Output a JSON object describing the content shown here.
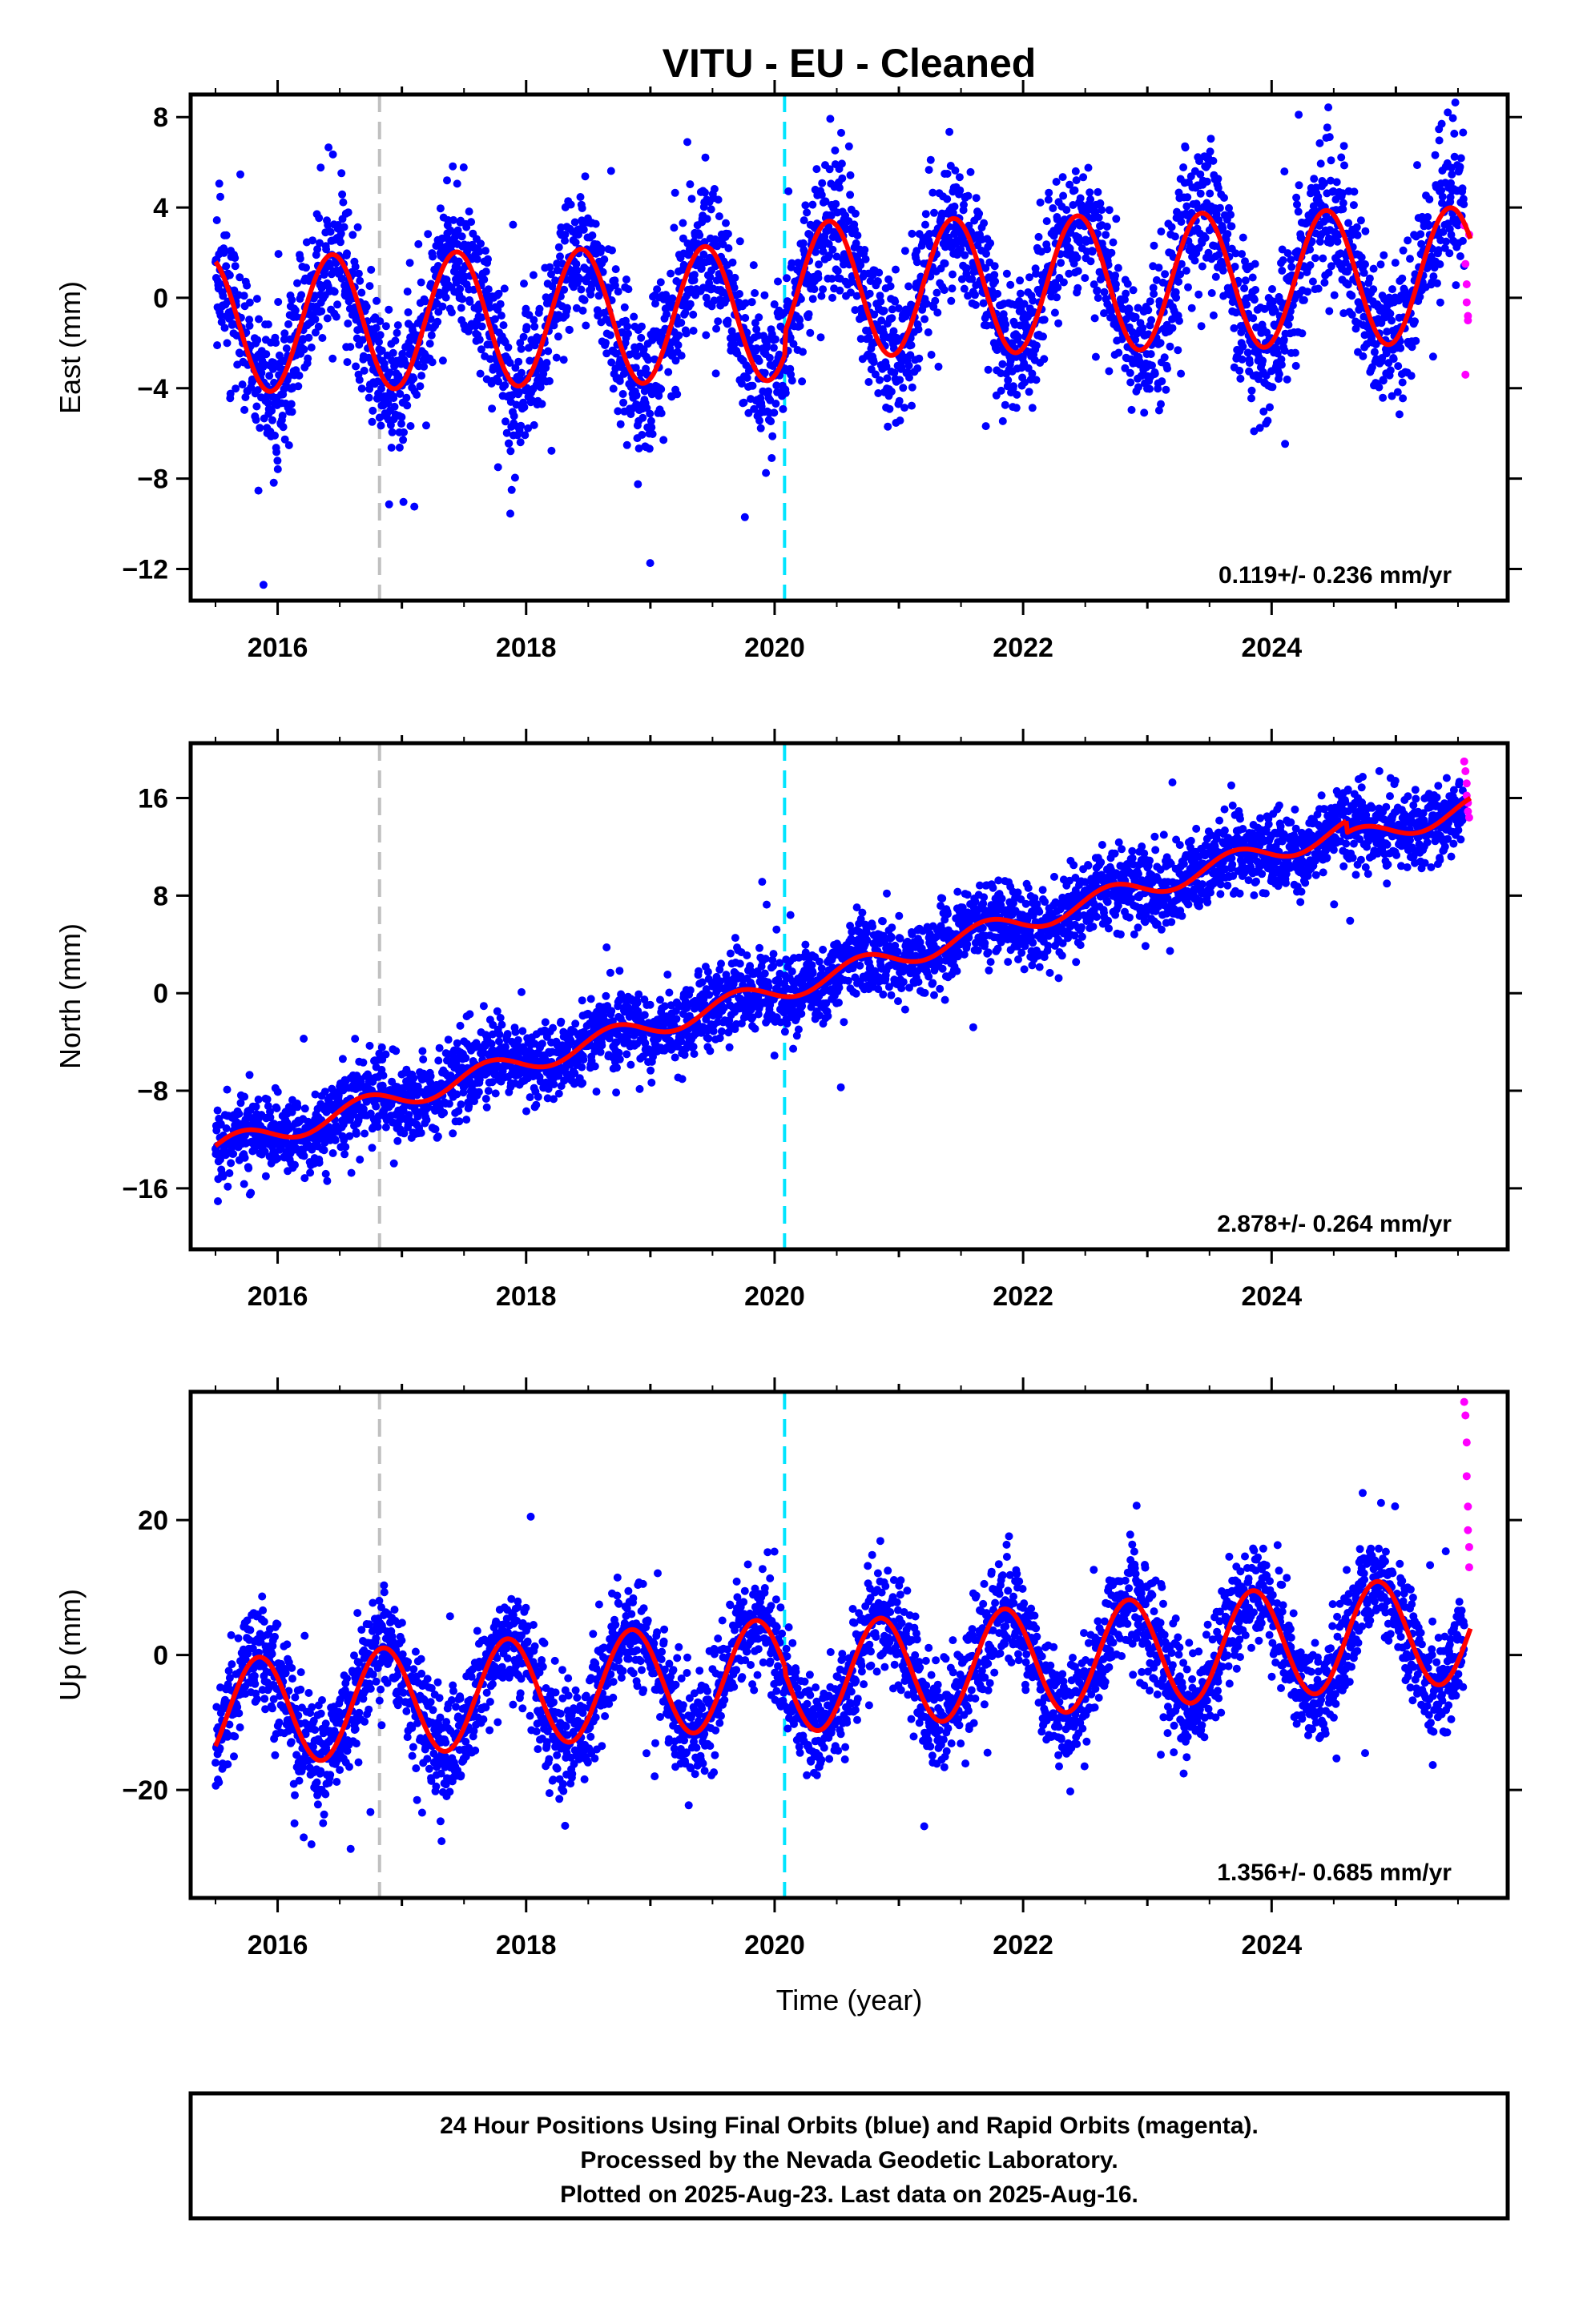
{
  "title": "VITU  - EU - Cleaned",
  "xlabel": "Time (year)",
  "footer": {
    "line1": "24 Hour Positions Using Final Orbits (blue) and Rapid Orbits (magenta).",
    "line2": "Processed by the Nevada Geodetic Laboratory.",
    "line3": "Plotted on 2025-Aug-23. Last data on 2025-Aug-16."
  },
  "colors": {
    "final_orbits": "#0000ff",
    "rapid_orbits": "#ff00ff",
    "model_fit": "#ff0000",
    "vline_gray": "#c0c0c0",
    "vline_cyan": "#00e5ff"
  },
  "chart_data": [
    {
      "type": "scatter",
      "component": "East",
      "ylabel": "East (mm)",
      "rate_label": "0.119+/- 0.236 mm/yr",
      "xlim": [
        2015.3,
        2025.9
      ],
      "ylim": [
        -13.4,
        9.0
      ],
      "x_ticks": [
        2016,
        2018,
        2020,
        2022,
        2024
      ],
      "y_ticks": [
        8,
        4,
        0,
        -4,
        -8,
        -12
      ],
      "grid": false,
      "vlines": [
        {
          "x": 2016.82,
          "style": "dashed",
          "color": "gray"
        },
        {
          "x": 2020.08,
          "style": "dashed",
          "color": "cyan"
        }
      ],
      "model": {
        "rate_mm_yr": 0.119,
        "offset": -0.6,
        "amplitude": 3.0,
        "phase_year": 0.19,
        "segments": [
          {
            "start": 2015.5,
            "end": 2020.08,
            "offset": -0.6
          },
          {
            "start": 2020.08,
            "end": 2025.6,
            "offset": 0.4
          }
        ]
      },
      "scatter_sigma": 1.6,
      "rapid_points": [
        [
          2025.55,
          3.2
        ],
        [
          2025.56,
          1.5
        ],
        [
          2025.57,
          0.6
        ],
        [
          2025.57,
          -0.2
        ],
        [
          2025.58,
          -0.8
        ],
        [
          2025.58,
          -1.0
        ],
        [
          2025.59,
          2.8
        ],
        [
          2025.56,
          -3.4
        ]
      ]
    },
    {
      "type": "scatter",
      "component": "North",
      "ylabel": "North (mm)",
      "rate_label": "2.878+/- 0.264 mm/yr",
      "xlim": [
        2015.3,
        2025.9
      ],
      "ylim": [
        -21.0,
        20.5
      ],
      "x_ticks": [
        2016,
        2018,
        2020,
        2022,
        2024
      ],
      "y_ticks": [
        16,
        8,
        0,
        -8,
        -16
      ],
      "grid": false,
      "vlines": [
        {
          "x": 2016.82,
          "style": "dashed",
          "color": "gray"
        },
        {
          "x": 2020.08,
          "style": "dashed",
          "color": "cyan"
        }
      ],
      "model": {
        "rate_mm_yr": 2.878,
        "value_at_2015_5": -12.8,
        "amplitude": 0.9,
        "phase_year": 0.45,
        "segments": [
          {
            "start": 2015.5,
            "end": 2024.6,
            "offset": 0.0
          },
          {
            "start": 2024.6,
            "end": 2025.6,
            "offset": -1.0
          }
        ]
      },
      "scatter_sigma": 1.6,
      "rapid_points": [
        [
          2025.55,
          19.0
        ],
        [
          2025.56,
          18.2
        ],
        [
          2025.57,
          17.2
        ],
        [
          2025.57,
          16.2
        ],
        [
          2025.58,
          15.6
        ],
        [
          2025.58,
          14.9
        ],
        [
          2025.59,
          14.4
        ]
      ]
    },
    {
      "type": "scatter",
      "component": "Up",
      "ylabel": "Up (mm)",
      "rate_label": "1.356+/- 0.685 mm/yr",
      "xlim": [
        2015.3,
        2025.9
      ],
      "ylim": [
        -36.0,
        39.0
      ],
      "x_ticks": [
        2016,
        2018,
        2020,
        2022,
        2024
      ],
      "y_ticks": [
        20,
        0,
        -20
      ],
      "grid": false,
      "vlines": [
        {
          "x": 2016.82,
          "style": "dashed",
          "color": "gray"
        },
        {
          "x": 2020.08,
          "style": "dashed",
          "color": "cyan"
        }
      ],
      "model": {
        "rate_mm_yr": 1.356,
        "offset": -2.0,
        "amplitude": 8.0,
        "phase_year": 0.6,
        "segments": [
          {
            "start": 2015.5,
            "end": 2020.08,
            "offset": -2.0
          },
          {
            "start": 2020.08,
            "end": 2025.6,
            "offset": -3.0
          }
        ]
      },
      "scatter_sigma": 4.0,
      "rapid_points": [
        [
          2025.55,
          37.5
        ],
        [
          2025.56,
          35.5
        ],
        [
          2025.57,
          31.5
        ],
        [
          2025.57,
          26.5
        ],
        [
          2025.58,
          22.0
        ],
        [
          2025.58,
          18.5
        ],
        [
          2025.59,
          16.0
        ],
        [
          2025.59,
          13.0
        ]
      ]
    }
  ]
}
